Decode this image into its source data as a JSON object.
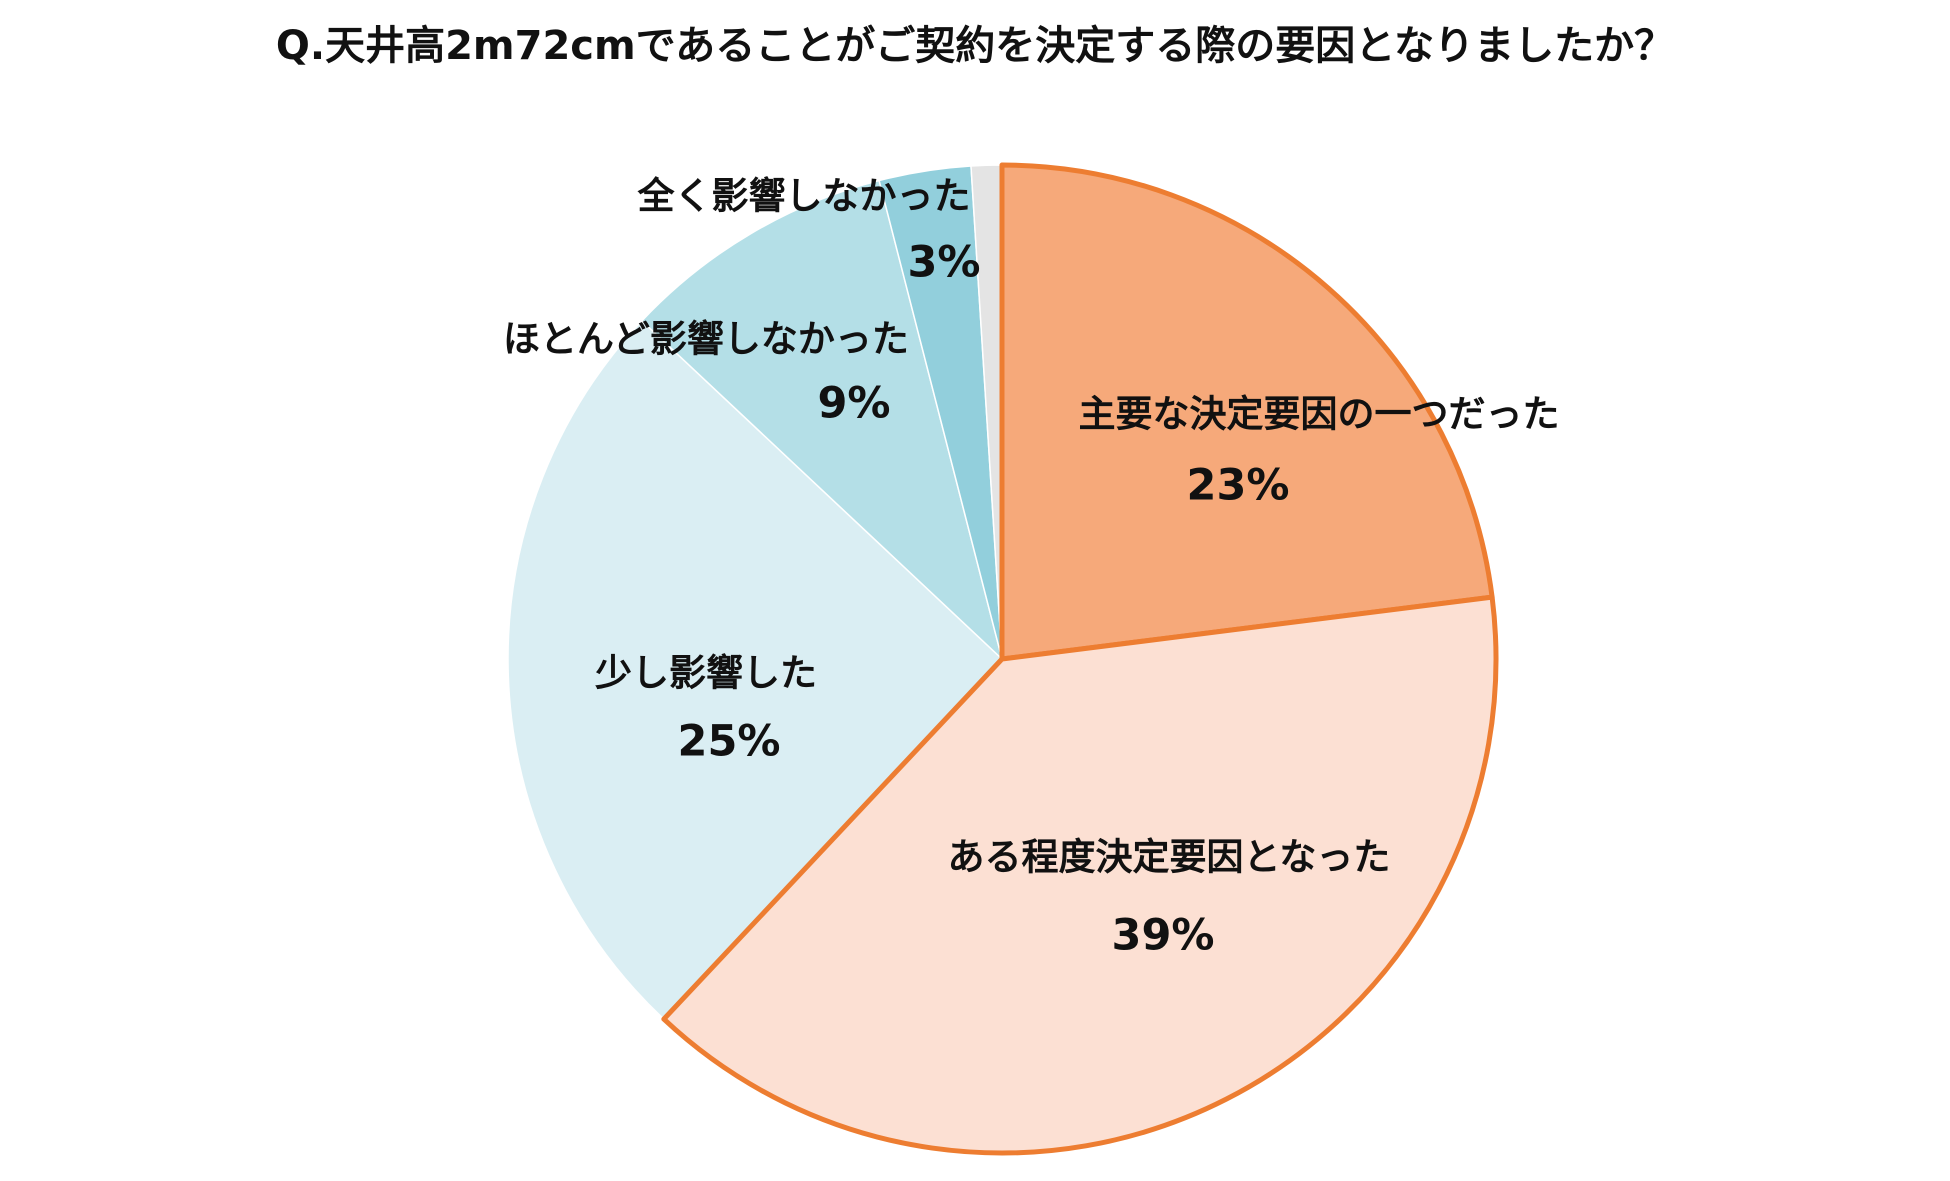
{
  "chart_data": {
    "type": "pie",
    "title": "Q.天井高2m72cmであることがご契約を決定する際の要因となりましたか？",
    "categories": [
      "主要な決定要因の一つだった",
      "ある程度決定要因となった",
      "少し影響した",
      "ほとんど影響しなかった",
      "全く影響しなかった",
      null
    ],
    "values": [
      23,
      39,
      25,
      9,
      3,
      1
    ],
    "value_labels": [
      "23%",
      "39%",
      "25%",
      "9%",
      "3%",
      null
    ],
    "colors": [
      "#f6a97a",
      "#fce0d3",
      "#daeef3",
      "#b4dfe7",
      "#92cfdc",
      "#e4e4e4"
    ],
    "edgecolors": [
      "#ed7d31",
      "#ed7d31",
      null,
      null,
      null,
      null
    ]
  }
}
